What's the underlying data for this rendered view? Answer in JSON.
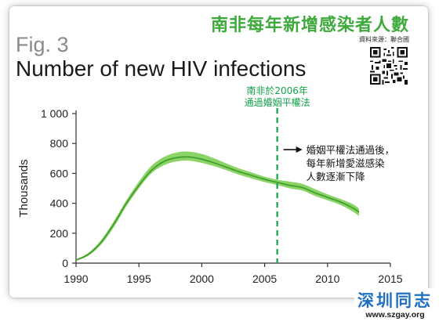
{
  "header": {
    "headline": "南非每年新增感染者人數",
    "source": "資料來源：聯合國"
  },
  "figure": {
    "label": "Fig. 3",
    "title": "Number of new HIV infections"
  },
  "watermark": {
    "name": "深圳同志",
    "url": "www.szgay.org"
  },
  "qr_code": {
    "icon": "qr-code-icon"
  },
  "colors": {
    "headline": "#3daa3b",
    "band": "#7dcf55",
    "line": "#3e9a2e",
    "marker": "#12a34a",
    "watermark": "#1e6fc0"
  },
  "chart_data": {
    "type": "line",
    "title": "Number of new HIV infections",
    "xlabel": "",
    "ylabel": "Thousands",
    "xlim": [
      1990,
      2015
    ],
    "ylim": [
      0,
      1000
    ],
    "xticks": [
      1990,
      1995,
      2000,
      2005,
      2010,
      2015
    ],
    "yticks": [
      0,
      200,
      400,
      600,
      800,
      1000
    ],
    "ytick_labels": [
      "0",
      "200",
      "400",
      "600",
      "800",
      "1 000"
    ],
    "grid": false,
    "series": [
      {
        "x": [
          1990,
          1991,
          1992,
          1993,
          1994,
          1995,
          1996,
          1997,
          1998,
          1999,
          2000,
          2001,
          2002,
          2003,
          2004,
          2005,
          2006,
          2007,
          2008,
          2009,
          2010,
          2011,
          2012,
          2012.5
        ],
        "y": [
          20,
          60,
          140,
          260,
          400,
          520,
          620,
          680,
          705,
          710,
          695,
          670,
          640,
          610,
          585,
          560,
          540,
          520,
          505,
          470,
          440,
          410,
          370,
          340
        ],
        "lower": [
          15,
          50,
          125,
          240,
          380,
          500,
          600,
          655,
          680,
          685,
          670,
          648,
          620,
          590,
          565,
          542,
          522,
          500,
          485,
          450,
          420,
          390,
          345,
          315
        ],
        "upper": [
          25,
          70,
          155,
          280,
          420,
          545,
          650,
          710,
          740,
          745,
          730,
          700,
          665,
          632,
          605,
          578,
          558,
          545,
          530,
          495,
          460,
          430,
          395,
          365
        ]
      }
    ],
    "annotations": [
      {
        "type": "vline",
        "x": 2006,
        "label_lines": [
          "南非於2006年",
          "通過婚姻平權法"
        ]
      },
      {
        "type": "arrow_text",
        "x": 2006.5,
        "y": 780,
        "lines": [
          "婚姻平權法通過後，",
          "每年新增愛滋感染",
          "人數逐漸下降"
        ]
      }
    ]
  }
}
